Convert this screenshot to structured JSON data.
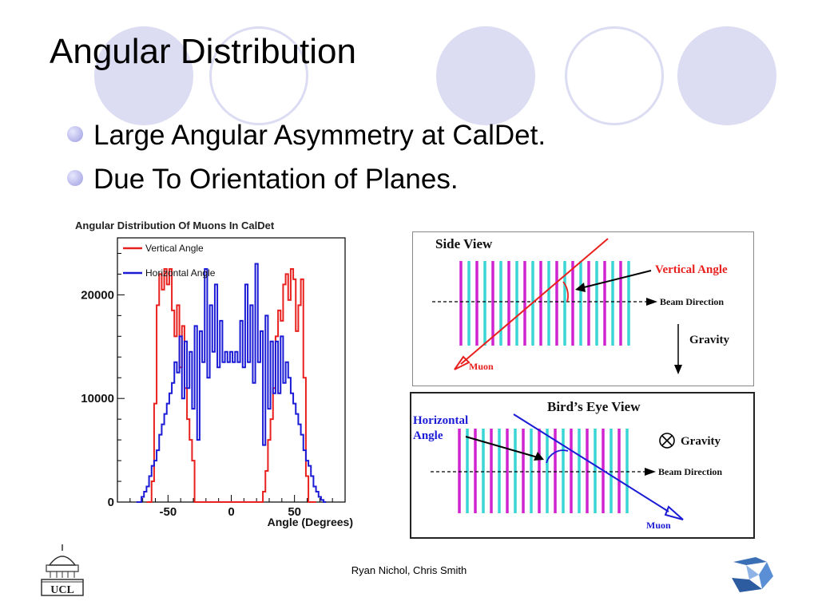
{
  "slide": {
    "title": "Angular Distribution",
    "bullets": [
      "Large Angular Asymmetry at CalDet.",
      "Due To Orientation of Planes."
    ],
    "footer": "Ryan Nichol, Chris Smith",
    "logo_text": "UCL"
  },
  "colors": {
    "vertical": "#e8201e",
    "horizontal": "#1b1bd6",
    "plane_magenta": "#d024d0",
    "plane_cyan": "#3ad6d6",
    "decor": "#dcdcf2"
  },
  "chart_data": {
    "type": "line",
    "title": "Angular Distribution Of Muons In CalDet",
    "xlabel": "Angle (Degrees)",
    "ylabel": "",
    "xlim": [
      -90,
      90
    ],
    "ylim": [
      0,
      25500
    ],
    "x_ticks": [
      "-50",
      "0",
      "50"
    ],
    "y_ticks": [
      "0",
      "10000",
      "20000"
    ],
    "legend_position": "top-left",
    "series": [
      {
        "name": "Vertical Angle",
        "color": "#e8201e",
        "x": [
          -67,
          -63,
          -61,
          -59,
          -57,
          -55,
          -53,
          -51,
          -49,
          -47,
          -45,
          -43,
          -41,
          -39,
          -37,
          -35,
          -33,
          -31,
          -29,
          -27,
          -25,
          -23,
          -21,
          -19,
          -17,
          -15,
          -13,
          -11,
          -9,
          -7,
          -5,
          -3,
          -1,
          1,
          3,
          5,
          7,
          9,
          11,
          13,
          15,
          17,
          19,
          21,
          23,
          25,
          27,
          29,
          31,
          33,
          35,
          37,
          39,
          41,
          43,
          45,
          47,
          49,
          51,
          53,
          55,
          57,
          59,
          61,
          63,
          65,
          67
        ],
        "y": [
          0,
          2000,
          9500,
          19000,
          22000,
          20500,
          22500,
          21000,
          22500,
          18500,
          16000,
          19000,
          13000,
          17000,
          11000,
          8000,
          6000,
          4000,
          0,
          0,
          0,
          0,
          0,
          0,
          0,
          0,
          0,
          0,
          0,
          0,
          0,
          0,
          0,
          0,
          0,
          0,
          0,
          0,
          0,
          0,
          0,
          0,
          0,
          0,
          0,
          1000,
          3000,
          6000,
          8000,
          11000,
          16000,
          18500,
          17500,
          21000,
          22000,
          19500,
          22500,
          21500,
          16500,
          19000,
          21500,
          12000,
          2500,
          0,
          0,
          0,
          0
        ]
      },
      {
        "name": "Horizontal Angle",
        "color": "#1b1bd6",
        "x": [
          -75,
          -71,
          -69,
          -67,
          -65,
          -63,
          -61,
          -59,
          -57,
          -55,
          -53,
          -51,
          -49,
          -47,
          -45,
          -43,
          -41,
          -39,
          -37,
          -35,
          -33,
          -31,
          -29,
          -27,
          -25,
          -23,
          -21,
          -19,
          -17,
          -15,
          -13,
          -11,
          -9,
          -7,
          -5,
          -3,
          -1,
          1,
          3,
          5,
          7,
          9,
          11,
          13,
          15,
          17,
          19,
          21,
          23,
          25,
          27,
          29,
          31,
          33,
          35,
          37,
          39,
          41,
          43,
          45,
          47,
          49,
          51,
          53,
          55,
          57,
          59,
          61,
          63,
          65,
          67,
          69,
          71,
          73,
          75
        ],
        "y": [
          0,
          500,
          1000,
          1500,
          2500,
          3500,
          4000,
          5000,
          6500,
          7500,
          8500,
          9500,
          10500,
          11500,
          13500,
          12500,
          16000,
          10000,
          15500,
          11000,
          14500,
          9000,
          17000,
          6000,
          16500,
          13500,
          22500,
          12000,
          19000,
          14500,
          21000,
          13000,
          17500,
          13500,
          14500,
          13500,
          14500,
          13500,
          14500,
          13500,
          17500,
          13000,
          21000,
          13500,
          19000,
          11500,
          23000,
          13500,
          16500,
          5500,
          18000,
          9000,
          15500,
          10500,
          15500,
          10500,
          16000,
          11500,
          13500,
          12000,
          10500,
          9500,
          8500,
          7500,
          6500,
          5000,
          4000,
          3500,
          2500,
          1500,
          1000,
          500,
          200,
          0,
          0
        ]
      }
    ]
  },
  "side_view": {
    "title": "Side View",
    "vertical_angle_label": "Vertical Angle",
    "beam_label": "Beam Direction",
    "gravity_label": "Gravity",
    "muon_label": "Muon"
  },
  "birds_view": {
    "title": "Bird’s Eye View",
    "horizontal_angle_label_1": "Horizontal",
    "horizontal_angle_label_2": "Angle",
    "gravity_label": "Gravity",
    "beam_label": "Beam Direction",
    "muon_label": "Muon"
  }
}
